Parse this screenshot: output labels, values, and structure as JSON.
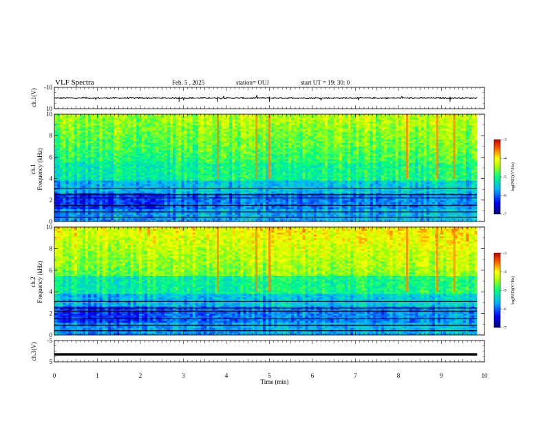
{
  "header": {
    "title": "VLF Spectra",
    "date": "Feb. 5 , 2025",
    "station": "station= OUJ",
    "start": "start  UT  =   19: 30: 0"
  },
  "chart_data": [
    {
      "type": "line",
      "panel": "ch1-waveform",
      "ylabel": "ch.1(V)",
      "ylim": [
        -10,
        10
      ],
      "yticks": [
        "10",
        "-10"
      ],
      "xlim": [
        0,
        10
      ],
      "series": [
        {
          "values_description": "noisy waveform centered near 0 V, amplitude about 1 V, occasional spikes",
          "mean": 0
        }
      ]
    },
    {
      "type": "heatmap",
      "panel": "ch1-spectrogram",
      "ylabel": "ch.1\nFrequency  (kHz)",
      "ylim": [
        0,
        10
      ],
      "yticks": [
        "0",
        "2",
        "4",
        "6",
        "8",
        "10"
      ],
      "xlim": [
        0,
        10
      ],
      "colorbar": {
        "label": "log(PSD)(V²/Hz)",
        "range": [
          -7,
          -3
        ],
        "ticks": [
          "-3",
          "-4",
          "-5",
          "-6",
          "-7"
        ]
      }
    },
    {
      "type": "heatmap",
      "panel": "ch2-spectrogram",
      "ylabel": "ch.2\nFrequency  (kHz)",
      "ylim": [
        0,
        10
      ],
      "yticks": [
        "0",
        "2",
        "4",
        "6",
        "8",
        "10"
      ],
      "xlim": [
        0,
        10
      ],
      "colorbar": {
        "label": "log(PSD)(V²/Hz)",
        "range": [
          -7,
          -3
        ],
        "ticks": [
          "-3",
          "-4",
          "-5",
          "-6",
          "-7"
        ]
      }
    },
    {
      "type": "line",
      "panel": "ch3-waveform",
      "ylabel": "ch.3(V)",
      "ylim": [
        -5,
        5
      ],
      "yticks": [
        "5",
        "-5"
      ],
      "xlim": [
        0,
        10
      ],
      "series": [
        {
          "values_description": "constant level near -1.5 V",
          "mean": -1.5
        }
      ]
    }
  ],
  "xaxis": {
    "label": "Time  (min)",
    "ticks": [
      "0",
      "1",
      "2",
      "3",
      "4",
      "5",
      "6",
      "7",
      "8",
      "9",
      "10"
    ]
  },
  "colors": {
    "palette": [
      "#00007a",
      "#0000ff",
      "#00b4ff",
      "#00ff80",
      "#b4ff00",
      "#ffff00",
      "#ff6000",
      "#d00000"
    ]
  }
}
